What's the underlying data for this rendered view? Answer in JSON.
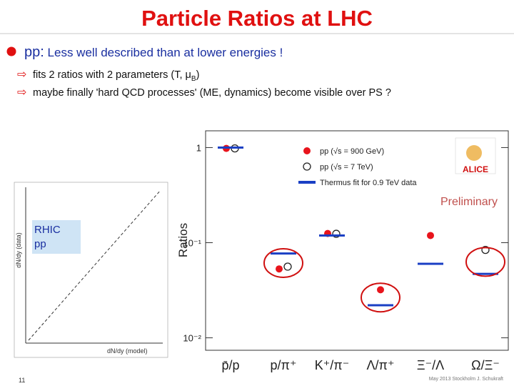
{
  "slide": {
    "title": "Particle Ratios at LHC",
    "bullet": {
      "lead": "pp:",
      "text": "Less well described than at lower energies !"
    },
    "subbullets": [
      {
        "parts": [
          "fits 2 ratios with 2 parameters (T, ",
          "μ",
          "B",
          ")"
        ]
      },
      {
        "parts": [
          "maybe finally 'hard QCD processes' (ME, dynamics) become visible over PS ?"
        ]
      }
    ],
    "inset": {
      "label": [
        "RHIC",
        "pp"
      ],
      "xlabel": "dN/dy (model)",
      "ylabel": "dN/dy (data)"
    },
    "page_number": "11",
    "footer": "May 2013 Stockholm J. Schukraft"
  },
  "chart_data": {
    "type": "scatter",
    "ylabel": "Ratios",
    "annotations": [
      "Preliminary",
      "ALICE"
    ],
    "categories": [
      "p̄/p",
      "p/π⁺",
      "K⁺/π⁻",
      "Λ/π⁺",
      "Ξ⁻/Λ",
      "Ω/Ξ⁻"
    ],
    "log_y": true,
    "ylim": [
      0.0074,
      1.5
    ],
    "yticks": [
      1,
      {
        "value": 0.1,
        "label": "10⁻¹"
      },
      {
        "value": 0.01,
        "label": "10⁻²"
      }
    ],
    "series": [
      {
        "name": "pp (√s = 900 GeV)",
        "color": "#e8141c",
        "marker": "filled",
        "values": [
          0.98,
          0.053,
          0.125,
          0.032,
          0.119,
          null
        ]
      },
      {
        "name": "pp (√s = 7 TeV)",
        "color": "#222222",
        "marker": "open",
        "values": [
          0.98,
          0.056,
          0.124,
          null,
          null,
          0.084
        ]
      },
      {
        "name": "Thermus fit for 0.9 TeV data",
        "color": "#1a3fc4",
        "marker": "line",
        "values": [
          1.0,
          0.077,
          0.119,
          0.022,
          0.06,
          0.047
        ]
      }
    ]
  }
}
